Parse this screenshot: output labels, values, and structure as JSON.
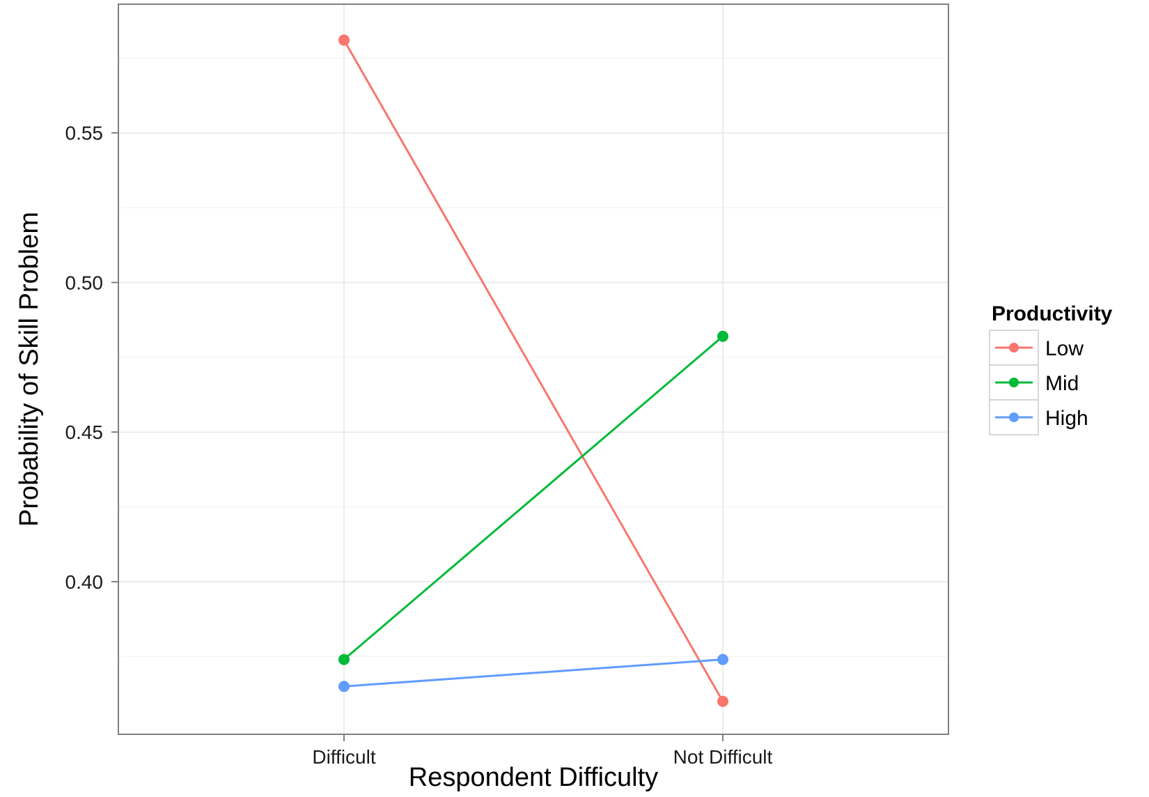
{
  "chart_data": {
    "type": "line",
    "title": "",
    "xlabel": "Respondent Difficulty",
    "ylabel": "Probability of Skill Problem",
    "categories": [
      "Difficult",
      "Not Difficult"
    ],
    "y_ticks": [
      "0.40",
      "0.45",
      "0.50",
      "0.55"
    ],
    "ylim": [
      0.349,
      0.593
    ],
    "grid": true,
    "legend": {
      "title": "Productivity",
      "placement": "right"
    },
    "series": [
      {
        "name": "Low",
        "color": "#F8766D",
        "values": [
          0.581,
          0.36
        ]
      },
      {
        "name": "Mid",
        "color": "#00BA38",
        "values": [
          0.374,
          0.482
        ]
      },
      {
        "name": "High",
        "color": "#619CFF",
        "values": [
          0.365,
          0.374
        ]
      }
    ]
  }
}
